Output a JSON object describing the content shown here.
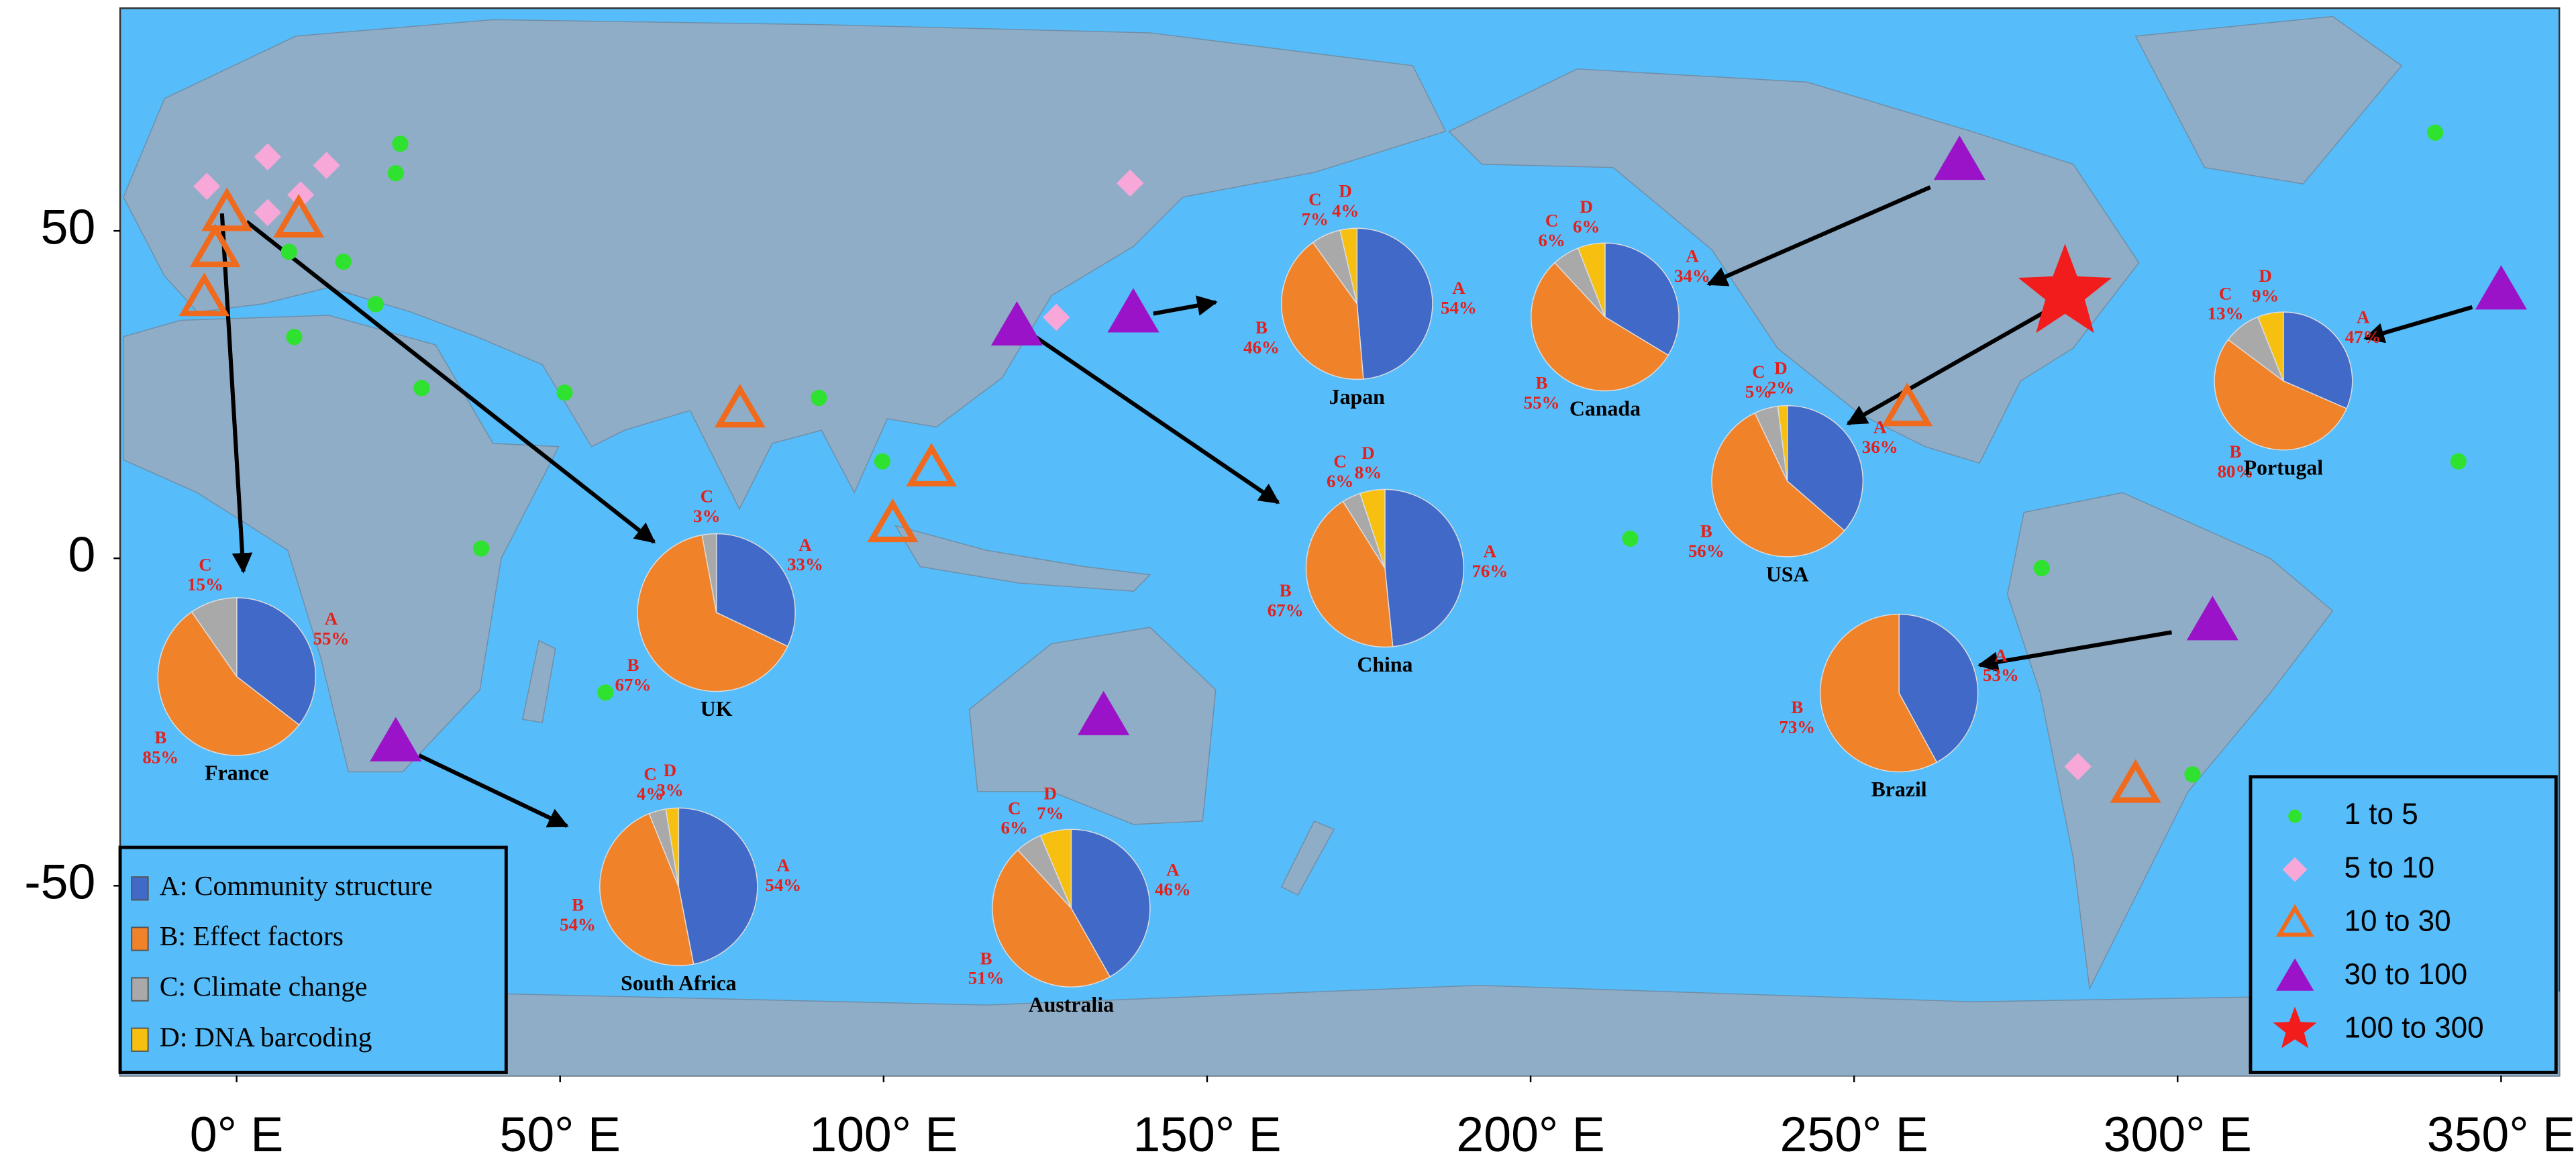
{
  "map": {
    "xlim": [
      -18,
      359
    ],
    "ylim": [
      -79,
      84
    ],
    "xticks": [
      {
        "value": 0,
        "label": "0° E"
      },
      {
        "value": 50,
        "label": "50° E"
      },
      {
        "value": 100,
        "label": "100° E"
      },
      {
        "value": 150,
        "label": "150° E"
      },
      {
        "value": 200,
        "label": "200° E"
      },
      {
        "value": 250,
        "label": "250° E"
      },
      {
        "value": 300,
        "label": "300° E"
      },
      {
        "value": 350,
        "label": "350° E"
      }
    ],
    "yticks": [
      50,
      0,
      -50
    ]
  },
  "site_legend": [
    {
      "label": "1  to  5",
      "shape": "circle",
      "color": "#2fe22f"
    },
    {
      "label": "5  to  10",
      "shape": "diamond",
      "color": "#f7a8d8"
    },
    {
      "label": "10  to  30",
      "shape": "open-triangle",
      "color": "#f06a1e"
    },
    {
      "label": "30  to  100",
      "shape": "triangle",
      "color": "#9b13c8"
    },
    {
      "label": "100  to  300",
      "shape": "star",
      "color": "#f21c1c"
    }
  ],
  "sites": [
    {
      "lon": 25.3,
      "lat": 63.3,
      "class": 0
    },
    {
      "lon": 24.6,
      "lat": 58.8,
      "class": 0
    },
    {
      "lon": 8.1,
      "lat": 46.8,
      "class": 0
    },
    {
      "lon": 16.5,
      "lat": 45.3,
      "class": 0
    },
    {
      "lon": 21.5,
      "lat": 38.8,
      "class": 0
    },
    {
      "lon": 8.9,
      "lat": 33.8,
      "class": 0
    },
    {
      "lon": 28.6,
      "lat": 26,
      "class": 0
    },
    {
      "lon": 50.7,
      "lat": 25.3,
      "class": 0
    },
    {
      "lon": 90,
      "lat": 24.5,
      "class": 0
    },
    {
      "lon": 99.8,
      "lat": 14.8,
      "class": 0
    },
    {
      "lon": 37.8,
      "lat": 1.5,
      "class": 0
    },
    {
      "lon": 57,
      "lat": -20.5,
      "class": 0
    },
    {
      "lon": 215.4,
      "lat": 3,
      "class": 0
    },
    {
      "lon": 279,
      "lat": -1.5,
      "class": 0
    },
    {
      "lon": 302.3,
      "lat": -33,
      "class": 0
    },
    {
      "lon": 343.4,
      "lat": 14.8,
      "class": 0
    },
    {
      "lon": 339.8,
      "lat": 65,
      "class": 0
    },
    {
      "lon": -4.6,
      "lat": 56.8,
      "class": 1
    },
    {
      "lon": 4.8,
      "lat": 61.3,
      "class": 1
    },
    {
      "lon": 13.9,
      "lat": 60,
      "class": 1
    },
    {
      "lon": 9.9,
      "lat": 55.5,
      "class": 1
    },
    {
      "lon": 4.8,
      "lat": 52.8,
      "class": 1
    },
    {
      "lon": 138.1,
      "lat": 57.3,
      "class": 1
    },
    {
      "lon": 126.7,
      "lat": 36.8,
      "class": 1
    },
    {
      "lon": 284.6,
      "lat": -31.8,
      "class": 1
    },
    {
      "lon": -1.5,
      "lat": 52.8,
      "class": 2
    },
    {
      "lon": 9.6,
      "lat": 51.8,
      "class": 2
    },
    {
      "lon": -3.3,
      "lat": 47.3,
      "class": 2
    },
    {
      "lon": -5,
      "lat": 39.8,
      "class": 2
    },
    {
      "lon": 77.8,
      "lat": 22.8,
      "class": 2
    },
    {
      "lon": 107.4,
      "lat": 13.8,
      "class": 2
    },
    {
      "lon": 101.4,
      "lat": 5.3,
      "class": 2
    },
    {
      "lon": 258.2,
      "lat": 23,
      "class": 2
    },
    {
      "lon": 293.5,
      "lat": -34.5,
      "class": 2
    },
    {
      "lon": 266.3,
      "lat": 60.8,
      "class": 3
    },
    {
      "lon": 120.6,
      "lat": 35.5,
      "class": 3
    },
    {
      "lon": 138.6,
      "lat": 37.5,
      "class": 3
    },
    {
      "lon": 305.4,
      "lat": -9.5,
      "class": 3
    },
    {
      "lon": 350,
      "lat": 41,
      "class": 3
    },
    {
      "lon": 134,
      "lat": -24,
      "class": 3
    },
    {
      "lon": 24.6,
      "lat": -28,
      "class": 3
    },
    {
      "lon": 282.6,
      "lat": 40.5,
      "class": 4
    }
  ],
  "topic_legend": [
    {
      "label": "A: Community structure",
      "color": "#4169c8"
    },
    {
      "label": "B: Effect factors",
      "color": "#f0822a"
    },
    {
      "label": "C: Climate change",
      "color": "#a9a9a9"
    },
    {
      "label": "D: DNA barcoding",
      "color": "#f7c010"
    }
  ],
  "pies": [
    {
      "name": "France",
      "labels": [
        "A",
        "B",
        "C"
      ],
      "values": [
        55,
        85,
        15
      ],
      "value_labels": [
        "55%",
        "85%",
        "15%"
      ]
    },
    {
      "name": "UK",
      "labels": [
        "A",
        "B",
        "C"
      ],
      "values": [
        33,
        67,
        3
      ],
      "value_labels": [
        "33%",
        "67%",
        "3%"
      ]
    },
    {
      "name": "South Africa",
      "labels": [
        "A",
        "B",
        "C",
        "D"
      ],
      "values": [
        54,
        54,
        4,
        3
      ],
      "value_labels": [
        "54%",
        "54%",
        "4%",
        "3%"
      ]
    },
    {
      "name": "Australia",
      "labels": [
        "A",
        "B",
        "C",
        "D"
      ],
      "values": [
        46,
        51,
        6,
        7
      ],
      "value_labels": [
        "46%",
        "51%",
        "6%",
        "7%"
      ]
    },
    {
      "name": "Japan",
      "labels": [
        "A",
        "B",
        "C",
        "D"
      ],
      "values": [
        54,
        46,
        7,
        4
      ],
      "value_labels": [
        "54%",
        "46%",
        "7%",
        "4%"
      ]
    },
    {
      "name": "China",
      "labels": [
        "A",
        "B",
        "C",
        "D"
      ],
      "values": [
        76,
        67,
        6,
        8
      ],
      "value_labels": [
        "76%",
        "67%",
        "6%",
        "8%"
      ]
    },
    {
      "name": "Canada",
      "labels": [
        "A",
        "B",
        "C",
        "D"
      ],
      "values": [
        34,
        55,
        6,
        6
      ],
      "value_labels": [
        "34%",
        "55%",
        "6%",
        "6%"
      ]
    },
    {
      "name": "USA",
      "labels": [
        "A",
        "B",
        "C",
        "D"
      ],
      "values": [
        36,
        56,
        5,
        2
      ],
      "value_labels": [
        "36%",
        "56%",
        "5%",
        "2%"
      ]
    },
    {
      "name": "Brazil",
      "labels": [
        "A",
        "B"
      ],
      "values": [
        53,
        73
      ],
      "value_labels": [
        "53%",
        "73%"
      ]
    },
    {
      "name": "Portugal",
      "labels": [
        "A",
        "B",
        "C",
        "D"
      ],
      "values": [
        47,
        80,
        13,
        9
      ],
      "value_labels": [
        "47%",
        "80%",
        "13%",
        "9%"
      ]
    }
  ]
}
